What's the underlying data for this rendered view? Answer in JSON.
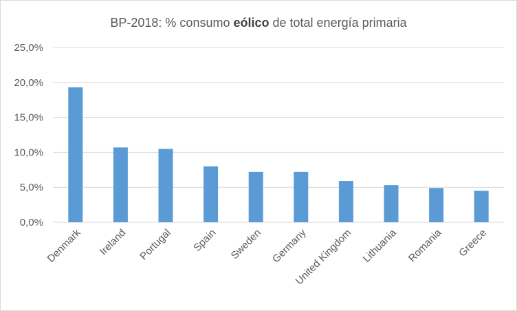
{
  "chart_data": {
    "type": "bar",
    "title": {
      "prefix": "BP-2018: % consumo ",
      "emphasis": "eólico",
      "suffix": " de total energía primaria"
    },
    "categories": [
      "Denmark",
      "Ireland",
      "Portugal",
      "Spain",
      "Sweden",
      "Germany",
      "United Kingdom",
      "Lithuania",
      "Romania",
      "Greece"
    ],
    "values": [
      19.3,
      10.7,
      10.5,
      8.0,
      7.2,
      7.2,
      5.9,
      5.3,
      4.9,
      4.5
    ],
    "ylim": [
      0,
      25
    ],
    "yticks": [
      {
        "value": 0,
        "label": "0,0%"
      },
      {
        "value": 5,
        "label": "5,0%"
      },
      {
        "value": 10,
        "label": "10,0%"
      },
      {
        "value": 15,
        "label": "15,0%"
      },
      {
        "value": 20,
        "label": "20,0%"
      },
      {
        "value": 25,
        "label": "25,0%"
      }
    ],
    "grid": true,
    "bar_color": "#5b9bd5"
  }
}
